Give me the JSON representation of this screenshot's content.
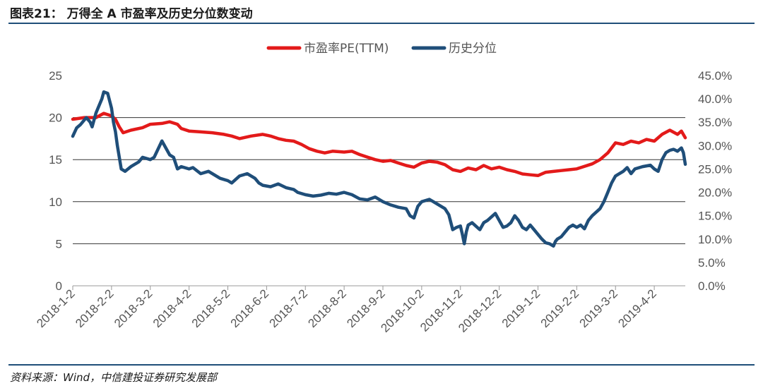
{
  "figure": {
    "label": "图表21：",
    "title": "万得全 A 市盈率及历史分位数变动",
    "source": "资料来源：Wind，中信建投证券研究发展部"
  },
  "colors": {
    "pe": "#e31a1a",
    "percentile": "#1f4e79",
    "grid": "#333333",
    "axis_text": "#555555",
    "rule": "#1f4e79"
  },
  "chart_data": {
    "type": "line",
    "x_labels": [
      "2018-1-2",
      "2018-2-2",
      "2018-3-2",
      "2018-4-2",
      "2018-5-2",
      "2018-6-2",
      "2018-7-2",
      "2018-8-2",
      "2018-9-2",
      "2018-10-2",
      "2018-11-2",
      "2018-12-2",
      "2019-1-2",
      "2019-2-2",
      "2019-3-2",
      "2019-4-2"
    ],
    "x_range": [
      0,
      15.8
    ],
    "y_left": {
      "ticks": [
        "0",
        "5",
        "10",
        "15",
        "20",
        "25"
      ],
      "lim": [
        0,
        25
      ],
      "grid": [
        5,
        10,
        15,
        20
      ]
    },
    "y_right": {
      "ticks": [
        "0.0%",
        "5.0%",
        "10.0%",
        "15.0%",
        "20.0%",
        "25.0%",
        "30.0%",
        "35.0%",
        "40.0%",
        "45.0%"
      ],
      "lim": [
        0,
        45
      ]
    },
    "series": [
      {
        "name": "市盈率PE(TTM)",
        "axis": "left",
        "points": [
          [
            0,
            19.8
          ],
          [
            0.3,
            20
          ],
          [
            0.6,
            20
          ],
          [
            0.8,
            20.5
          ],
          [
            1.0,
            20.2
          ],
          [
            1.1,
            19.8
          ],
          [
            1.2,
            18.9
          ],
          [
            1.3,
            18.2
          ],
          [
            1.5,
            18.5
          ],
          [
            1.8,
            18.8
          ],
          [
            2.0,
            19.2
          ],
          [
            2.3,
            19.3
          ],
          [
            2.5,
            19.5
          ],
          [
            2.7,
            19.2
          ],
          [
            2.8,
            18.7
          ],
          [
            3.0,
            18.4
          ],
          [
            3.3,
            18.3
          ],
          [
            3.6,
            18.2
          ],
          [
            3.9,
            18.0
          ],
          [
            4.1,
            17.8
          ],
          [
            4.3,
            17.5
          ],
          [
            4.6,
            17.8
          ],
          [
            4.9,
            18.0
          ],
          [
            5.1,
            17.8
          ],
          [
            5.3,
            17.5
          ],
          [
            5.5,
            17.3
          ],
          [
            5.7,
            17.2
          ],
          [
            5.9,
            16.8
          ],
          [
            6.1,
            16.3
          ],
          [
            6.3,
            16.0
          ],
          [
            6.5,
            15.8
          ],
          [
            6.7,
            16.0
          ],
          [
            7.0,
            15.9
          ],
          [
            7.2,
            16.0
          ],
          [
            7.4,
            15.6
          ],
          [
            7.6,
            15.3
          ],
          [
            7.8,
            15.0
          ],
          [
            8.0,
            14.8
          ],
          [
            8.2,
            14.9
          ],
          [
            8.4,
            14.6
          ],
          [
            8.6,
            14.3
          ],
          [
            8.8,
            14.1
          ],
          [
            9.0,
            14.6
          ],
          [
            9.2,
            14.8
          ],
          [
            9.4,
            14.7
          ],
          [
            9.6,
            14.4
          ],
          [
            9.8,
            13.8
          ],
          [
            10.0,
            13.6
          ],
          [
            10.2,
            14.0
          ],
          [
            10.4,
            13.8
          ],
          [
            10.6,
            14.3
          ],
          [
            10.8,
            13.9
          ],
          [
            11.0,
            14.1
          ],
          [
            11.2,
            13.8
          ],
          [
            11.4,
            13.6
          ],
          [
            11.6,
            13.3
          ],
          [
            11.8,
            13.2
          ],
          [
            12.0,
            13.1
          ],
          [
            12.2,
            13.5
          ],
          [
            12.4,
            13.6
          ],
          [
            12.6,
            13.7
          ],
          [
            12.8,
            13.8
          ],
          [
            13.0,
            13.9
          ],
          [
            13.2,
            14.2
          ],
          [
            13.4,
            14.5
          ],
          [
            13.6,
            15.0
          ],
          [
            13.8,
            15.8
          ],
          [
            14.0,
            17.0
          ],
          [
            14.2,
            16.8
          ],
          [
            14.4,
            17.2
          ],
          [
            14.6,
            17.0
          ],
          [
            14.8,
            17.4
          ],
          [
            15.0,
            17.2
          ],
          [
            15.2,
            18.0
          ],
          [
            15.4,
            18.5
          ],
          [
            15.6,
            18.0
          ],
          [
            15.7,
            18.4
          ],
          [
            15.8,
            17.6
          ]
        ]
      },
      {
        "name": "历史分位",
        "axis": "right",
        "points": [
          [
            0,
            32
          ],
          [
            0.1,
            33.8
          ],
          [
            0.2,
            34.5
          ],
          [
            0.35,
            36
          ],
          [
            0.45,
            35
          ],
          [
            0.5,
            34
          ],
          [
            0.6,
            37
          ],
          [
            0.75,
            40
          ],
          [
            0.8,
            41.5
          ],
          [
            0.9,
            41.2
          ],
          [
            1.0,
            38
          ],
          [
            1.05,
            35
          ],
          [
            1.1,
            33
          ],
          [
            1.15,
            30
          ],
          [
            1.25,
            25
          ],
          [
            1.35,
            24.5
          ],
          [
            1.5,
            25.5
          ],
          [
            1.7,
            26.5
          ],
          [
            1.8,
            27.5
          ],
          [
            2.0,
            27
          ],
          [
            2.1,
            27.5
          ],
          [
            2.3,
            31
          ],
          [
            2.4,
            29.5
          ],
          [
            2.5,
            28
          ],
          [
            2.6,
            27.5
          ],
          [
            2.7,
            25
          ],
          [
            2.8,
            25.5
          ],
          [
            3.0,
            25
          ],
          [
            3.1,
            25.3
          ],
          [
            3.3,
            24
          ],
          [
            3.5,
            24.5
          ],
          [
            3.8,
            23
          ],
          [
            4.0,
            22.5
          ],
          [
            4.1,
            22
          ],
          [
            4.3,
            23.5
          ],
          [
            4.5,
            24
          ],
          [
            4.7,
            23
          ],
          [
            4.8,
            22
          ],
          [
            4.9,
            21.5
          ],
          [
            5.1,
            21.2
          ],
          [
            5.3,
            21.8
          ],
          [
            5.5,
            21
          ],
          [
            5.7,
            20.6
          ],
          [
            5.8,
            20
          ],
          [
            6.0,
            19.5
          ],
          [
            6.2,
            19.2
          ],
          [
            6.4,
            19.4
          ],
          [
            6.6,
            19.8
          ],
          [
            6.8,
            19.6
          ],
          [
            7.0,
            20
          ],
          [
            7.2,
            19.5
          ],
          [
            7.4,
            18.6
          ],
          [
            7.6,
            18.4
          ],
          [
            7.8,
            19
          ],
          [
            8.0,
            18
          ],
          [
            8.2,
            17.3
          ],
          [
            8.4,
            16.8
          ],
          [
            8.6,
            16.5
          ],
          [
            8.7,
            15
          ],
          [
            8.8,
            14.5
          ],
          [
            8.9,
            17
          ],
          [
            9.0,
            18
          ],
          [
            9.2,
            18.5
          ],
          [
            9.4,
            17.5
          ],
          [
            9.6,
            16.5
          ],
          [
            9.7,
            15.2
          ],
          [
            9.8,
            12
          ],
          [
            9.9,
            12.5
          ],
          [
            10.0,
            12.8
          ],
          [
            10.05,
            11
          ],
          [
            10.1,
            9
          ],
          [
            10.15,
            11.5
          ],
          [
            10.2,
            13
          ],
          [
            10.3,
            13.5
          ],
          [
            10.5,
            12
          ],
          [
            10.6,
            13.5
          ],
          [
            10.7,
            14
          ],
          [
            10.9,
            15.5
          ],
          [
            11.0,
            14
          ],
          [
            11.1,
            12.5
          ],
          [
            11.2,
            12.8
          ],
          [
            11.3,
            13.5
          ],
          [
            11.4,
            15
          ],
          [
            11.5,
            14
          ],
          [
            11.6,
            12.5
          ],
          [
            11.7,
            12
          ],
          [
            11.8,
            13
          ],
          [
            11.9,
            12
          ],
          [
            12.0,
            11
          ],
          [
            12.1,
            10
          ],
          [
            12.2,
            9.2
          ],
          [
            12.3,
            9
          ],
          [
            12.4,
            8.5
          ],
          [
            12.45,
            9.5
          ],
          [
            12.5,
            10
          ],
          [
            12.6,
            10.5
          ],
          [
            12.7,
            11.5
          ],
          [
            12.8,
            12.5
          ],
          [
            12.9,
            13
          ],
          [
            13.0,
            12.5
          ],
          [
            13.1,
            13
          ],
          [
            13.2,
            12.2
          ],
          [
            13.3,
            14
          ],
          [
            13.4,
            15
          ],
          [
            13.6,
            16.5
          ],
          [
            13.7,
            18
          ],
          [
            13.8,
            20
          ],
          [
            13.9,
            22
          ],
          [
            14.0,
            23.5
          ],
          [
            14.1,
            24
          ],
          [
            14.2,
            24.5
          ],
          [
            14.3,
            25.3
          ],
          [
            14.4,
            24
          ],
          [
            14.5,
            25
          ],
          [
            14.7,
            25.5
          ],
          [
            14.9,
            25.8
          ],
          [
            15.0,
            25
          ],
          [
            15.1,
            24.5
          ],
          [
            15.2,
            27
          ],
          [
            15.3,
            28.5
          ],
          [
            15.4,
            29
          ],
          [
            15.5,
            29.2
          ],
          [
            15.6,
            28.8
          ],
          [
            15.7,
            29.5
          ],
          [
            15.75,
            28.5
          ],
          [
            15.8,
            26
          ]
        ]
      }
    ]
  }
}
